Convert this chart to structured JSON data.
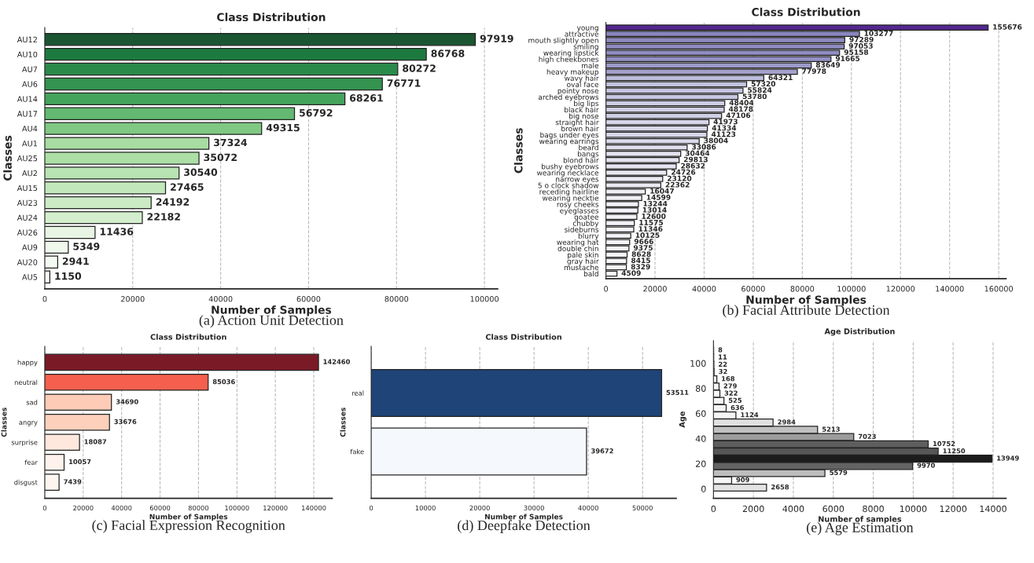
{
  "chart_data": [
    {
      "type": "bar",
      "orientation": "horizontal",
      "title": "Class Distribution",
      "xlabel": "Number of Samples",
      "ylabel": "Classes",
      "categories": [
        "AU12",
        "AU10",
        "AU7",
        "AU6",
        "AU14",
        "AU17",
        "AU4",
        "AU1",
        "AU25",
        "AU2",
        "AU15",
        "AU23",
        "AU24",
        "AU26",
        "AU9",
        "AU20",
        "AU5"
      ],
      "values": [
        97919,
        86768,
        80272,
        76771,
        68261,
        56792,
        49315,
        37324,
        35072,
        30540,
        27465,
        24192,
        22182,
        11436,
        5349,
        2941,
        1150
      ],
      "colors": [
        "#1b5532",
        "#1d7a3f",
        "#2a8a4a",
        "#33934f",
        "#45a45c",
        "#63b972",
        "#80c883",
        "#a8dca2",
        "#addea6",
        "#b8e3b2",
        "#c2e7bb",
        "#cbebc5",
        "#d3eecd",
        "#e8f5e4",
        "#eef8eb",
        "#f3faf1",
        "#f5fbf3"
      ],
      "xlim": [
        0,
        103000
      ],
      "xticks": [
        0,
        20000,
        40000,
        60000,
        80000,
        100000
      ],
      "grid": "x",
      "data_labels": true,
      "annotations": [
        "(a) Action Unit Detection"
      ]
    },
    {
      "type": "bar",
      "orientation": "horizontal",
      "title": "Class Distribution",
      "xlabel": "Number of Samples",
      "ylabel": "Classes",
      "categories": [
        "young",
        "attractive",
        "mouth slightly open",
        "smiling",
        "wearing lipstick",
        "high cheekbones",
        "male",
        "heavy makeup",
        "wavy hair",
        "oval face",
        "pointy nose",
        "arched eyebrows",
        "big lips",
        "black hair",
        "big nose",
        "straight hair",
        "brown hair",
        "bags under eyes",
        "wearing earrings",
        "beard",
        "bangs",
        "blond hair",
        "bushy eyebrows",
        "wearing necklace",
        "narrow eyes",
        "5 o clock shadow",
        "receding hairline",
        "wearing necktie",
        "rosy cheeks",
        "eyeglasses",
        "goatee",
        "chubby",
        "sideburns",
        "blurry",
        "wearing hat",
        "double chin",
        "pale skin",
        "gray hair",
        "mustache",
        "bald"
      ],
      "values": [
        155676,
        103277,
        97289,
        97053,
        95158,
        91665,
        83649,
        77978,
        64321,
        57320,
        55824,
        53780,
        48404,
        48178,
        47106,
        41973,
        41334,
        41123,
        38004,
        33086,
        30464,
        29813,
        28632,
        24726,
        23120,
        22362,
        16047,
        14599,
        13244,
        13014,
        12600,
        11575,
        11346,
        10125,
        9666,
        9375,
        8628,
        8415,
        8329,
        4509
      ],
      "colors": [
        "#54278f",
        "#8a87bf",
        "#8e8bc1",
        "#8e8bc1",
        "#908dc2",
        "#9491c4",
        "#9c99c8",
        "#a3a0cb",
        "#bcbddc",
        "#c2c2df",
        "#c4c4e0",
        "#c7c7e1",
        "#cdcde4",
        "#cecee5",
        "#cfcfe5",
        "#d6d6e9",
        "#d7d7ea",
        "#d7d7ea",
        "#dadaeb",
        "#e0dfee",
        "#e3e2ef",
        "#e4e3f0",
        "#e5e4f0",
        "#e9e8f2",
        "#eae9f3",
        "#ebeaf3",
        "#f0eff6",
        "#f1f0f6",
        "#f2f1f7",
        "#f2f1f7",
        "#f2f2f7",
        "#f3f2f8",
        "#f3f3f8",
        "#f4f3f8",
        "#f5f4f9",
        "#f5f4f9",
        "#f5f5f9",
        "#f6f5f9",
        "#f6f5f9",
        "#fcfbfd"
      ],
      "xlim": [
        0,
        163000
      ],
      "xticks": [
        0,
        20000,
        40000,
        60000,
        80000,
        100000,
        120000,
        140000,
        160000
      ],
      "grid": "x",
      "data_labels": true,
      "annotations": [
        "(b) Facial Attribute Detection"
      ]
    },
    {
      "type": "bar",
      "orientation": "horizontal",
      "title": "Class Distribution",
      "xlabel": "Number of Samples",
      "ylabel": "Classes",
      "categories": [
        "happy",
        "neutral",
        "sad",
        "angry",
        "surprise",
        "fear",
        "disgust"
      ],
      "values": [
        142460,
        85036,
        34690,
        33676,
        18087,
        10057,
        7439
      ],
      "colors": [
        "#7a1a27",
        "#f5604e",
        "#fdcbb6",
        "#fdd0bc",
        "#fee8de",
        "#fff2ec",
        "#fff5f0"
      ],
      "xlim": [
        0,
        149600
      ],
      "xticks": [
        0,
        20000,
        40000,
        60000,
        80000,
        100000,
        120000,
        140000
      ],
      "grid": "x",
      "data_labels": true,
      "annotations": [
        "(c) Facial Expression Recognition"
      ]
    },
    {
      "type": "bar",
      "orientation": "horizontal",
      "title": "Class Distribution",
      "xlabel": "Number of Samples",
      "ylabel": "Classes",
      "categories": [
        "real",
        "fake"
      ],
      "values": [
        53511,
        39672
      ],
      "colors": [
        "#1f4478",
        "#f5f9fe"
      ],
      "xlim": [
        0,
        56200
      ],
      "xticks": [
        0,
        10000,
        20000,
        30000,
        40000,
        50000
      ],
      "grid": "x",
      "data_labels": true,
      "annotations": [
        "(d) Deepfake Detection"
      ]
    },
    {
      "type": "bar",
      "orientation": "horizontal",
      "title": "Age Distribution",
      "xlabel": "Number of samples",
      "ylabel": "Age",
      "x": [
        1,
        6.75,
        12.5,
        18.25,
        24,
        29.75,
        35.5,
        41.25,
        47,
        52.75,
        58.5,
        64.25,
        70,
        75.75,
        81.5,
        87.25,
        93,
        98.75,
        104.5,
        110.25
      ],
      "values": [
        2658,
        909,
        5579,
        9970,
        13949,
        11250,
        10752,
        7023,
        5213,
        2984,
        1124,
        636,
        525,
        322,
        279,
        168,
        32,
        22,
        11,
        8
      ],
      "colors": [
        "#e3e3e3",
        "#f5f5f5",
        "#bdbdbd",
        "#636363",
        "#1c1c1c",
        "#575757",
        "#5e5e5e",
        "#9c9c9c",
        "#c0c0c0",
        "#e0e0e0",
        "#f4f4f4",
        "#f7f7f7",
        "#f7f7f7",
        "#f8f8f8",
        "#f8f8f8",
        "#f9f9f9",
        "#fafafa",
        "#fafafa",
        "#fafafa",
        "#fafafa"
      ],
      "xlim": [
        0,
        14650
      ],
      "xticks": [
        0,
        2000,
        4000,
        6000,
        8000,
        10000,
        12000,
        14000
      ],
      "ylim": [
        -7.5,
        118
      ],
      "yticks": [
        0,
        20,
        40,
        60,
        80,
        100
      ],
      "grid": "x",
      "data_labels": true,
      "annotations": [
        "(e) Age Estimation"
      ]
    }
  ]
}
